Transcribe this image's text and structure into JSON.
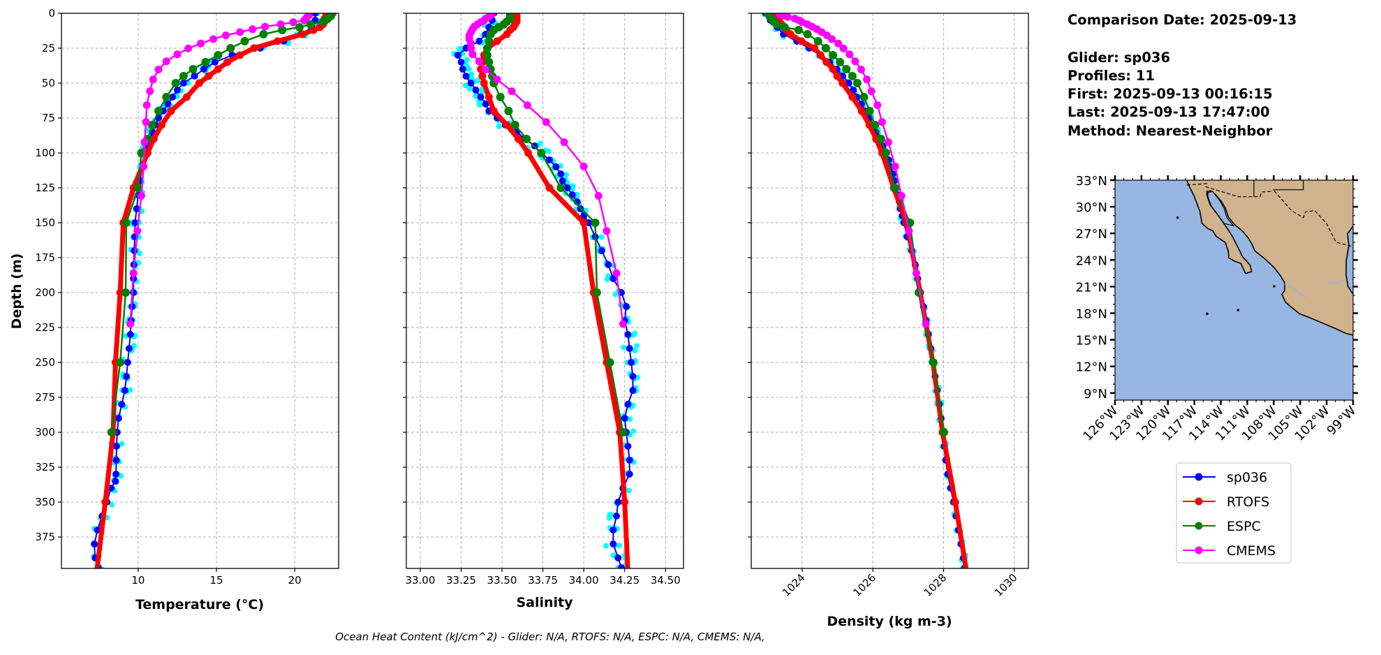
{
  "info": {
    "comparison_date": "Comparison Date: 2025-09-13",
    "glider": "Glider: sp036",
    "profiles": "Profiles: 11",
    "first": "First: 2025-09-13 00:16:15",
    "last": "Last: 2025-09-13 17:47:00",
    "method": "Method: Nearest-Neighbor"
  },
  "footer": "Ocean Heat Content (kJ/cm^2) - Glider: N/A,  RTOFS: N/A,  ESPC: N/A,  CMEMS: N/A,",
  "colors": {
    "sp036": "#0000ff",
    "RTOFS": "#ff0000",
    "ESPC": "#008000",
    "CMEMS": "#ff00ff",
    "glider_profiles": "#00ffff",
    "ocean": "#97b6e1",
    "land": "#d0b28c",
    "grid": "#b0b0b0"
  },
  "legend": {
    "placement": "below-map",
    "items": [
      {
        "name": "sp036",
        "color": "#0000ff"
      },
      {
        "name": "RTOFS",
        "color": "#ff0000"
      },
      {
        "name": "ESPC",
        "color": "#008000"
      },
      {
        "name": "CMEMS",
        "color": "#ff00ff"
      }
    ]
  },
  "map": {
    "lon_range": [
      -126,
      -99
    ],
    "lat_range": [
      8.2,
      33
    ],
    "lat_ticks": [
      "33°N",
      "30°N",
      "27°N",
      "24°N",
      "21°N",
      "18°N",
      "15°N",
      "12°N",
      "9°N"
    ],
    "lat_values": [
      33,
      30,
      27,
      24,
      21,
      18,
      15,
      12,
      9
    ],
    "lon_ticks": [
      "126°W",
      "123°W",
      "120°W",
      "117°W",
      "114°W",
      "111°W",
      "108°W",
      "105°W",
      "102°W",
      "99°W"
    ],
    "lon_values": [
      -126,
      -123,
      -120,
      -117,
      -114,
      -111,
      -108,
      -105,
      -102,
      -99
    ]
  },
  "chart_data": [
    {
      "type": "line",
      "xlabel": "Temperature (°C)",
      "ylabel": "Depth (m)",
      "xlim": [
        5.1,
        22.8
      ],
      "ylim": [
        397.5,
        0
      ],
      "grid": true,
      "xticks": [
        10,
        15,
        20
      ],
      "xtick_labels": [
        "10",
        "15",
        "20"
      ],
      "yticks": [
        0,
        25,
        50,
        75,
        100,
        125,
        150,
        175,
        200,
        225,
        250,
        275,
        300,
        325,
        350,
        375
      ],
      "ytick_labels": [
        "0",
        "25",
        "50",
        "75",
        "100",
        "125",
        "150",
        "175",
        "200",
        "225",
        "250",
        "275",
        "300",
        "325",
        "350",
        "375"
      ],
      "series": [
        {
          "name": "sp036",
          "depth": [
            0,
            5,
            10,
            15,
            20,
            25,
            30,
            35,
            40,
            45,
            50,
            55,
            60,
            65,
            70,
            75,
            80,
            85,
            90,
            95,
            100,
            110,
            120,
            130,
            140,
            150,
            160,
            170,
            180,
            190,
            200,
            210,
            220,
            230,
            240,
            250,
            260,
            270,
            280,
            290,
            300,
            310,
            320,
            330,
            335,
            340,
            350,
            360,
            370,
            380,
            390,
            397
          ],
          "values": [
            21.3,
            21.3,
            21.1,
            20.4,
            19.3,
            17.8,
            16.0,
            14.9,
            14.2,
            13.6,
            12.9,
            12.5,
            12.2,
            11.9,
            11.6,
            11.3,
            11.1,
            10.9,
            10.75,
            10.6,
            10.5,
            10.3,
            10.1,
            10.0,
            9.9,
            9.8,
            9.78,
            9.75,
            9.72,
            9.7,
            9.7,
            9.62,
            9.55,
            9.5,
            9.42,
            9.33,
            9.25,
            9.15,
            8.95,
            8.75,
            8.66,
            8.62,
            8.6,
            8.58,
            8.55,
            8.27,
            8.0,
            7.7,
            7.4,
            7.2,
            7.25,
            7.45
          ]
        },
        {
          "name": "RTOFS",
          "depth": [
            0,
            2,
            4,
            6,
            8,
            10,
            12,
            15,
            20,
            25,
            30,
            35,
            40,
            45,
            50,
            60,
            70,
            80,
            90,
            100,
            125,
            150,
            200,
            250,
            300,
            350,
            400
          ],
          "values": [
            22.0,
            22.0,
            21.9,
            21.9,
            21.8,
            21.6,
            21.2,
            20.5,
            18.9,
            17.4,
            16.5,
            15.7,
            15.1,
            14.5,
            13.9,
            13.1,
            12.1,
            11.5,
            11.0,
            10.6,
            9.7,
            9.05,
            8.85,
            8.55,
            8.4,
            7.9,
            7.35
          ]
        },
        {
          "name": "ESPC",
          "depth": [
            0,
            2,
            4,
            6,
            8,
            10,
            12,
            15,
            20,
            25,
            30,
            35,
            40,
            45,
            50,
            60,
            70,
            80,
            90,
            100,
            125,
            150,
            200,
            250,
            300
          ],
          "values": [
            22.4,
            22.3,
            22.1,
            21.8,
            21.0,
            20.3,
            19.2,
            18.0,
            16.8,
            15.9,
            15.1,
            14.3,
            13.5,
            12.9,
            12.4,
            11.8,
            11.3,
            10.9,
            10.6,
            10.2,
            10.0,
            9.24,
            9.2,
            8.85,
            8.3
          ]
        },
        {
          "name": "CMEMS",
          "depth": [
            0.5,
            1.5,
            2.6,
            3.8,
            5.1,
            6.4,
            7.9,
            9.6,
            11.4,
            13.5,
            15.8,
            18.5,
            21.6,
            25.2,
            29.4,
            34.4,
            40.3,
            47.4,
            55.8,
            65.8,
            77.9,
            92.3,
            109.7,
            130.7,
            155.9,
            186.1,
            222.5
          ],
          "values": [
            20.9,
            20.9,
            20.8,
            20.7,
            20.6,
            19.9,
            19.1,
            18.1,
            17.3,
            16.5,
            15.6,
            14.8,
            14.0,
            13.2,
            12.5,
            11.8,
            11.3,
            10.95,
            10.75,
            10.55,
            10.5,
            10.4,
            10.35,
            10.2,
            9.95,
            9.7,
            9.5
          ]
        }
      ]
    },
    {
      "type": "line",
      "xlabel": "Salinity",
      "xlim": [
        32.915,
        34.61
      ],
      "ylim": [
        397.5,
        0
      ],
      "grid": true,
      "xticks": [
        33.0,
        33.25,
        33.5,
        33.75,
        34.0,
        34.25,
        34.5
      ],
      "xtick_labels": [
        "33.00",
        "33.25",
        "33.50",
        "33.75",
        "34.00",
        "34.25",
        "34.50"
      ],
      "series": [
        {
          "name": "sp036",
          "depth": [
            0,
            5,
            10,
            15,
            20,
            25,
            30,
            35,
            40,
            45,
            50,
            55,
            60,
            65,
            70,
            75,
            80,
            85,
            90,
            95,
            100,
            105,
            110,
            115,
            120,
            125,
            130,
            135,
            140,
            145,
            150,
            160,
            170,
            180,
            190,
            200,
            210,
            220,
            230,
            240,
            250,
            260,
            270,
            280,
            290,
            300,
            310,
            320,
            330,
            340,
            350,
            360,
            370,
            380,
            390,
            397
          ],
          "values": [
            33.45,
            33.44,
            33.42,
            33.4,
            33.36,
            33.28,
            33.23,
            33.25,
            33.26,
            33.28,
            33.31,
            33.34,
            33.37,
            33.4,
            33.42,
            33.47,
            33.52,
            33.59,
            33.64,
            33.7,
            33.74,
            33.79,
            33.83,
            33.86,
            33.87,
            33.9,
            33.93,
            33.96,
            33.98,
            34.0,
            34.03,
            34.07,
            34.11,
            34.15,
            34.18,
            34.23,
            34.26,
            34.25,
            34.27,
            34.28,
            34.29,
            34.3,
            34.3,
            34.27,
            34.25,
            34.26,
            34.27,
            34.28,
            34.28,
            34.24,
            34.21,
            34.2,
            34.18,
            34.18,
            34.21,
            34.23
          ]
        },
        {
          "name": "RTOFS",
          "depth": [
            0,
            2,
            4,
            6,
            8,
            10,
            12,
            15,
            20,
            25,
            30,
            35,
            40,
            45,
            50,
            60,
            70,
            80,
            90,
            100,
            125,
            150,
            200,
            250,
            300,
            350,
            400
          ],
          "values": [
            33.59,
            33.59,
            33.59,
            33.59,
            33.58,
            33.57,
            33.55,
            33.53,
            33.47,
            33.41,
            33.39,
            33.38,
            33.37,
            33.38,
            33.39,
            33.42,
            33.45,
            33.53,
            33.6,
            33.66,
            33.79,
            34.0,
            34.06,
            34.14,
            34.22,
            34.25,
            34.27
          ]
        },
        {
          "name": "ESPC",
          "depth": [
            0,
            2,
            4,
            6,
            8,
            10,
            12,
            15,
            20,
            25,
            30,
            35,
            40,
            45,
            50,
            60,
            70,
            80,
            90,
            100,
            125,
            150,
            200,
            250,
            300
          ],
          "values": [
            33.55,
            33.55,
            33.55,
            33.53,
            33.51,
            33.48,
            33.45,
            33.43,
            33.42,
            33.41,
            33.41,
            33.42,
            33.43,
            33.44,
            33.45,
            33.49,
            33.54,
            33.58,
            33.65,
            33.74,
            33.86,
            34.07,
            34.08,
            34.16,
            34.24
          ]
        },
        {
          "name": "CMEMS",
          "depth": [
            0.5,
            1.5,
            2.6,
            3.8,
            5.1,
            6.4,
            7.9,
            9.6,
            11.4,
            13.5,
            15.8,
            18.5,
            21.6,
            25.2,
            29.4,
            34.4,
            40.3,
            47.4,
            55.8,
            65.8,
            77.9,
            92.3,
            109.7,
            130.7,
            155.9,
            186.1,
            222.5
          ],
          "values": [
            33.44,
            33.43,
            33.42,
            33.4,
            33.39,
            33.37,
            33.35,
            33.33,
            33.32,
            33.31,
            33.3,
            33.3,
            33.31,
            33.31,
            33.32,
            33.36,
            33.4,
            33.47,
            33.56,
            33.655,
            33.77,
            33.88,
            34.0,
            34.09,
            34.14,
            34.2,
            34.24
          ]
        }
      ]
    },
    {
      "type": "line",
      "xlabel": "Density (kg m-3)",
      "xlim": [
        1022.56,
        1030.4
      ],
      "ylim": [
        397.5,
        0
      ],
      "grid": true,
      "xticks": [
        1024,
        1026,
        1028,
        1030
      ],
      "xtick_labels": [
        "1024",
        "1026",
        "1028",
        "1030"
      ],
      "series": [
        {
          "name": "sp036",
          "depth": [
            0,
            5,
            10,
            15,
            20,
            25,
            30,
            35,
            40,
            45,
            50,
            55,
            60,
            65,
            70,
            75,
            80,
            85,
            90,
            95,
            100,
            105,
            110,
            115,
            120,
            125,
            130,
            135,
            140,
            145,
            150,
            160,
            170,
            180,
            190,
            200,
            210,
            220,
            230,
            240,
            250,
            260,
            270,
            280,
            290,
            300,
            310,
            320,
            330,
            340,
            350,
            360,
            370,
            380,
            390,
            397
          ],
          "values": [
            1022.97,
            1023.1,
            1023.3,
            1023.47,
            1023.85,
            1024.2,
            1024.52,
            1024.78,
            1024.98,
            1025.15,
            1025.32,
            1025.45,
            1025.55,
            1025.68,
            1025.79,
            1025.9,
            1025.99,
            1026.09,
            1026.18,
            1026.29,
            1026.38,
            1026.45,
            1026.51,
            1026.57,
            1026.61,
            1026.66,
            1026.71,
            1026.75,
            1026.78,
            1026.83,
            1026.88,
            1026.97,
            1027.1,
            1027.2,
            1027.27,
            1027.35,
            1027.43,
            1027.5,
            1027.57,
            1027.64,
            1027.7,
            1027.76,
            1027.82,
            1027.88,
            1027.93,
            1027.98,
            1028.02,
            1028.06,
            1028.12,
            1028.2,
            1028.28,
            1028.35,
            1028.42,
            1028.49,
            1028.56,
            1028.6
          ]
        },
        {
          "name": "RTOFS",
          "depth": [
            0,
            2,
            4,
            6,
            8,
            10,
            12,
            15,
            20,
            25,
            30,
            35,
            40,
            45,
            50,
            60,
            70,
            80,
            90,
            100,
            125,
            150,
            200,
            250,
            300,
            350,
            400
          ],
          "values": [
            1023.26,
            1023.28,
            1023.3,
            1023.36,
            1023.42,
            1023.48,
            1023.55,
            1023.67,
            1023.98,
            1024.35,
            1024.52,
            1024.69,
            1024.87,
            1024.99,
            1025.14,
            1025.42,
            1025.68,
            1025.9,
            1026.09,
            1026.26,
            1026.59,
            1026.95,
            1027.34,
            1027.7,
            1027.97,
            1028.33,
            1028.65
          ]
        },
        {
          "name": "ESPC",
          "depth": [
            0,
            2,
            4,
            6,
            8,
            10,
            12,
            15,
            20,
            25,
            30,
            35,
            40,
            45,
            50,
            60,
            70,
            80,
            90,
            100,
            125,
            150,
            200,
            250,
            300
          ],
          "values": [
            1023.03,
            1023.08,
            1023.14,
            1023.2,
            1023.29,
            1023.5,
            1023.9,
            1024.15,
            1024.45,
            1024.67,
            1024.87,
            1025.07,
            1025.25,
            1025.42,
            1025.56,
            1025.75,
            1025.91,
            1026.06,
            1026.23,
            1026.37,
            1026.62,
            1027.05,
            1027.3,
            1027.71,
            1028.01
          ]
        },
        {
          "name": "CMEMS",
          "depth": [
            0.5,
            1.5,
            2.6,
            3.8,
            5.1,
            6.4,
            7.9,
            9.6,
            11.4,
            13.5,
            15.8,
            18.5,
            21.6,
            25.2,
            29.4,
            34.4,
            40.3,
            47.4,
            55.8,
            65.8,
            77.9,
            92.3,
            109.7,
            130.7,
            155.9,
            186.1,
            222.5
          ],
          "values": [
            1023.36,
            1023.46,
            1023.59,
            1023.79,
            1023.92,
            1024.0,
            1024.15,
            1024.28,
            1024.42,
            1024.55,
            1024.7,
            1024.84,
            1025.02,
            1025.17,
            1025.34,
            1025.5,
            1025.67,
            1025.83,
            1025.96,
            1026.13,
            1026.26,
            1026.44,
            1026.63,
            1026.81,
            1027.02,
            1027.23,
            1027.5
          ]
        }
      ]
    }
  ]
}
